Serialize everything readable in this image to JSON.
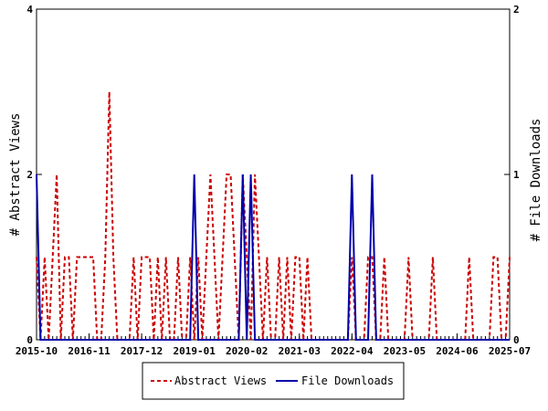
{
  "chart_data": {
    "type": "line",
    "title": "",
    "xlabel": "",
    "ylabel_left": "# Abstract Views",
    "ylabel_right": "# File Downloads",
    "x_tick_labels": [
      "2015-10",
      "2016-11",
      "2017-12",
      "2019-01",
      "2020-02",
      "2021-03",
      "2022-04",
      "2023-05",
      "2024-06",
      "2025-07"
    ],
    "x_range": [
      "2015-10",
      "2025-07"
    ],
    "ylim_left": [
      0,
      4
    ],
    "ylim_right": [
      0,
      2
    ],
    "y_ticks_left": [
      "0",
      "2",
      "4"
    ],
    "y_ticks_right": [
      "0",
      "1",
      "2"
    ],
    "grid": false,
    "legend_position": "bottom",
    "series": [
      {
        "name": "Abstract Views",
        "axis": "left",
        "color": "#cc0000",
        "style": "dashed",
        "points": [
          [
            "2015-10",
            1
          ],
          [
            "2015-11",
            0
          ],
          [
            "2015-12",
            1
          ],
          [
            "2016-01",
            0
          ],
          [
            "2016-02",
            1
          ],
          [
            "2016-03",
            2
          ],
          [
            "2016-04",
            0
          ],
          [
            "2016-05",
            1
          ],
          [
            "2016-06",
            1
          ],
          [
            "2016-07",
            0
          ],
          [
            "2016-08",
            1
          ],
          [
            "2016-09",
            1
          ],
          [
            "2016-10",
            1
          ],
          [
            "2016-11",
            1
          ],
          [
            "2016-12",
            1
          ],
          [
            "2016-13",
            0
          ],
          [
            "2017-02",
            0
          ],
          [
            "2017-03",
            1
          ],
          [
            "2017-04",
            3
          ],
          [
            "2017-05",
            1
          ],
          [
            "2017-06",
            0
          ],
          [
            "2017-07",
            0
          ],
          [
            "2017-08",
            0
          ],
          [
            "2017-09",
            0
          ],
          [
            "2017-10",
            1
          ],
          [
            "2017-11",
            0
          ],
          [
            "2017-12",
            1
          ],
          [
            "2018-01",
            1
          ],
          [
            "2018-02",
            1
          ],
          [
            "2018-03",
            0
          ],
          [
            "2018-04",
            1
          ],
          [
            "2018-05",
            0
          ],
          [
            "2018-06",
            1
          ],
          [
            "2018-07",
            0
          ],
          [
            "2018-08",
            0
          ],
          [
            "2018-09",
            1
          ],
          [
            "2018-10",
            0
          ],
          [
            "2018-11",
            0
          ],
          [
            "2018-12",
            1
          ],
          [
            "2019-01",
            0
          ],
          [
            "2019-02",
            1
          ],
          [
            "2019-03",
            0
          ],
          [
            "2019-04",
            1
          ],
          [
            "2019-05",
            2
          ],
          [
            "2019-06",
            1
          ],
          [
            "2019-07",
            0
          ],
          [
            "2019-08",
            1
          ],
          [
            "2019-09",
            2
          ],
          [
            "2019-10",
            2
          ],
          [
            "2019-11",
            1
          ],
          [
            "2019-12",
            0
          ],
          [
            "2020-01",
            2
          ],
          [
            "2020-02",
            1
          ],
          [
            "2020-03",
            0
          ],
          [
            "2020-04",
            2
          ],
          [
            "2020-05",
            1
          ],
          [
            "2020-06",
            0
          ],
          [
            "2020-07",
            1
          ],
          [
            "2020-08",
            0
          ],
          [
            "2020-09",
            0
          ],
          [
            "2020-10",
            1
          ],
          [
            "2020-11",
            0
          ],
          [
            "2020-12",
            1
          ],
          [
            "2021-01",
            0
          ],
          [
            "2021-02",
            1
          ],
          [
            "2021-03",
            1
          ],
          [
            "2021-04",
            0
          ],
          [
            "2021-05",
            1
          ],
          [
            "2021-06",
            0
          ],
          [
            "2022-03",
            0
          ],
          [
            "2022-04",
            1
          ],
          [
            "2022-05",
            0
          ],
          [
            "2022-06",
            0
          ],
          [
            "2022-07",
            0
          ],
          [
            "2022-08",
            1
          ],
          [
            "2022-09",
            1
          ],
          [
            "2022-10",
            0
          ],
          [
            "2022-11",
            0
          ],
          [
            "2022-12",
            1
          ],
          [
            "2023-01",
            0
          ],
          [
            "2023-05",
            0
          ],
          [
            "2023-06",
            1
          ],
          [
            "2023-07",
            0
          ],
          [
            "2023-11",
            0
          ],
          [
            "2023-12",
            1
          ],
          [
            "2024-01",
            0
          ],
          [
            "2024-08",
            0
          ],
          [
            "2024-09",
            1
          ],
          [
            "2024-10",
            0
          ],
          [
            "2025-02",
            0
          ],
          [
            "2025-03",
            1
          ],
          [
            "2025-04",
            1
          ],
          [
            "2025-05",
            0
          ],
          [
            "2025-06",
            0
          ],
          [
            "2025-07",
            1
          ]
        ]
      },
      {
        "name": "File Downloads",
        "axis": "right",
        "color": "#0000aa",
        "style": "solid",
        "points": [
          [
            "2015-10",
            1
          ],
          [
            "2015-11",
            0
          ],
          [
            "2018-12",
            0
          ],
          [
            "2019-01",
            1
          ],
          [
            "2019-02",
            0
          ],
          [
            "2019-12",
            0
          ],
          [
            "2020-01",
            1
          ],
          [
            "2020-02",
            0
          ],
          [
            "2020-03",
            1
          ],
          [
            "2020-04",
            0
          ],
          [
            "2022-03",
            0
          ],
          [
            "2022-04",
            1
          ],
          [
            "2022-05",
            0
          ],
          [
            "2022-08",
            0
          ],
          [
            "2022-09",
            1
          ],
          [
            "2022-10",
            0
          ],
          [
            "2025-07",
            0
          ]
        ]
      }
    ]
  }
}
